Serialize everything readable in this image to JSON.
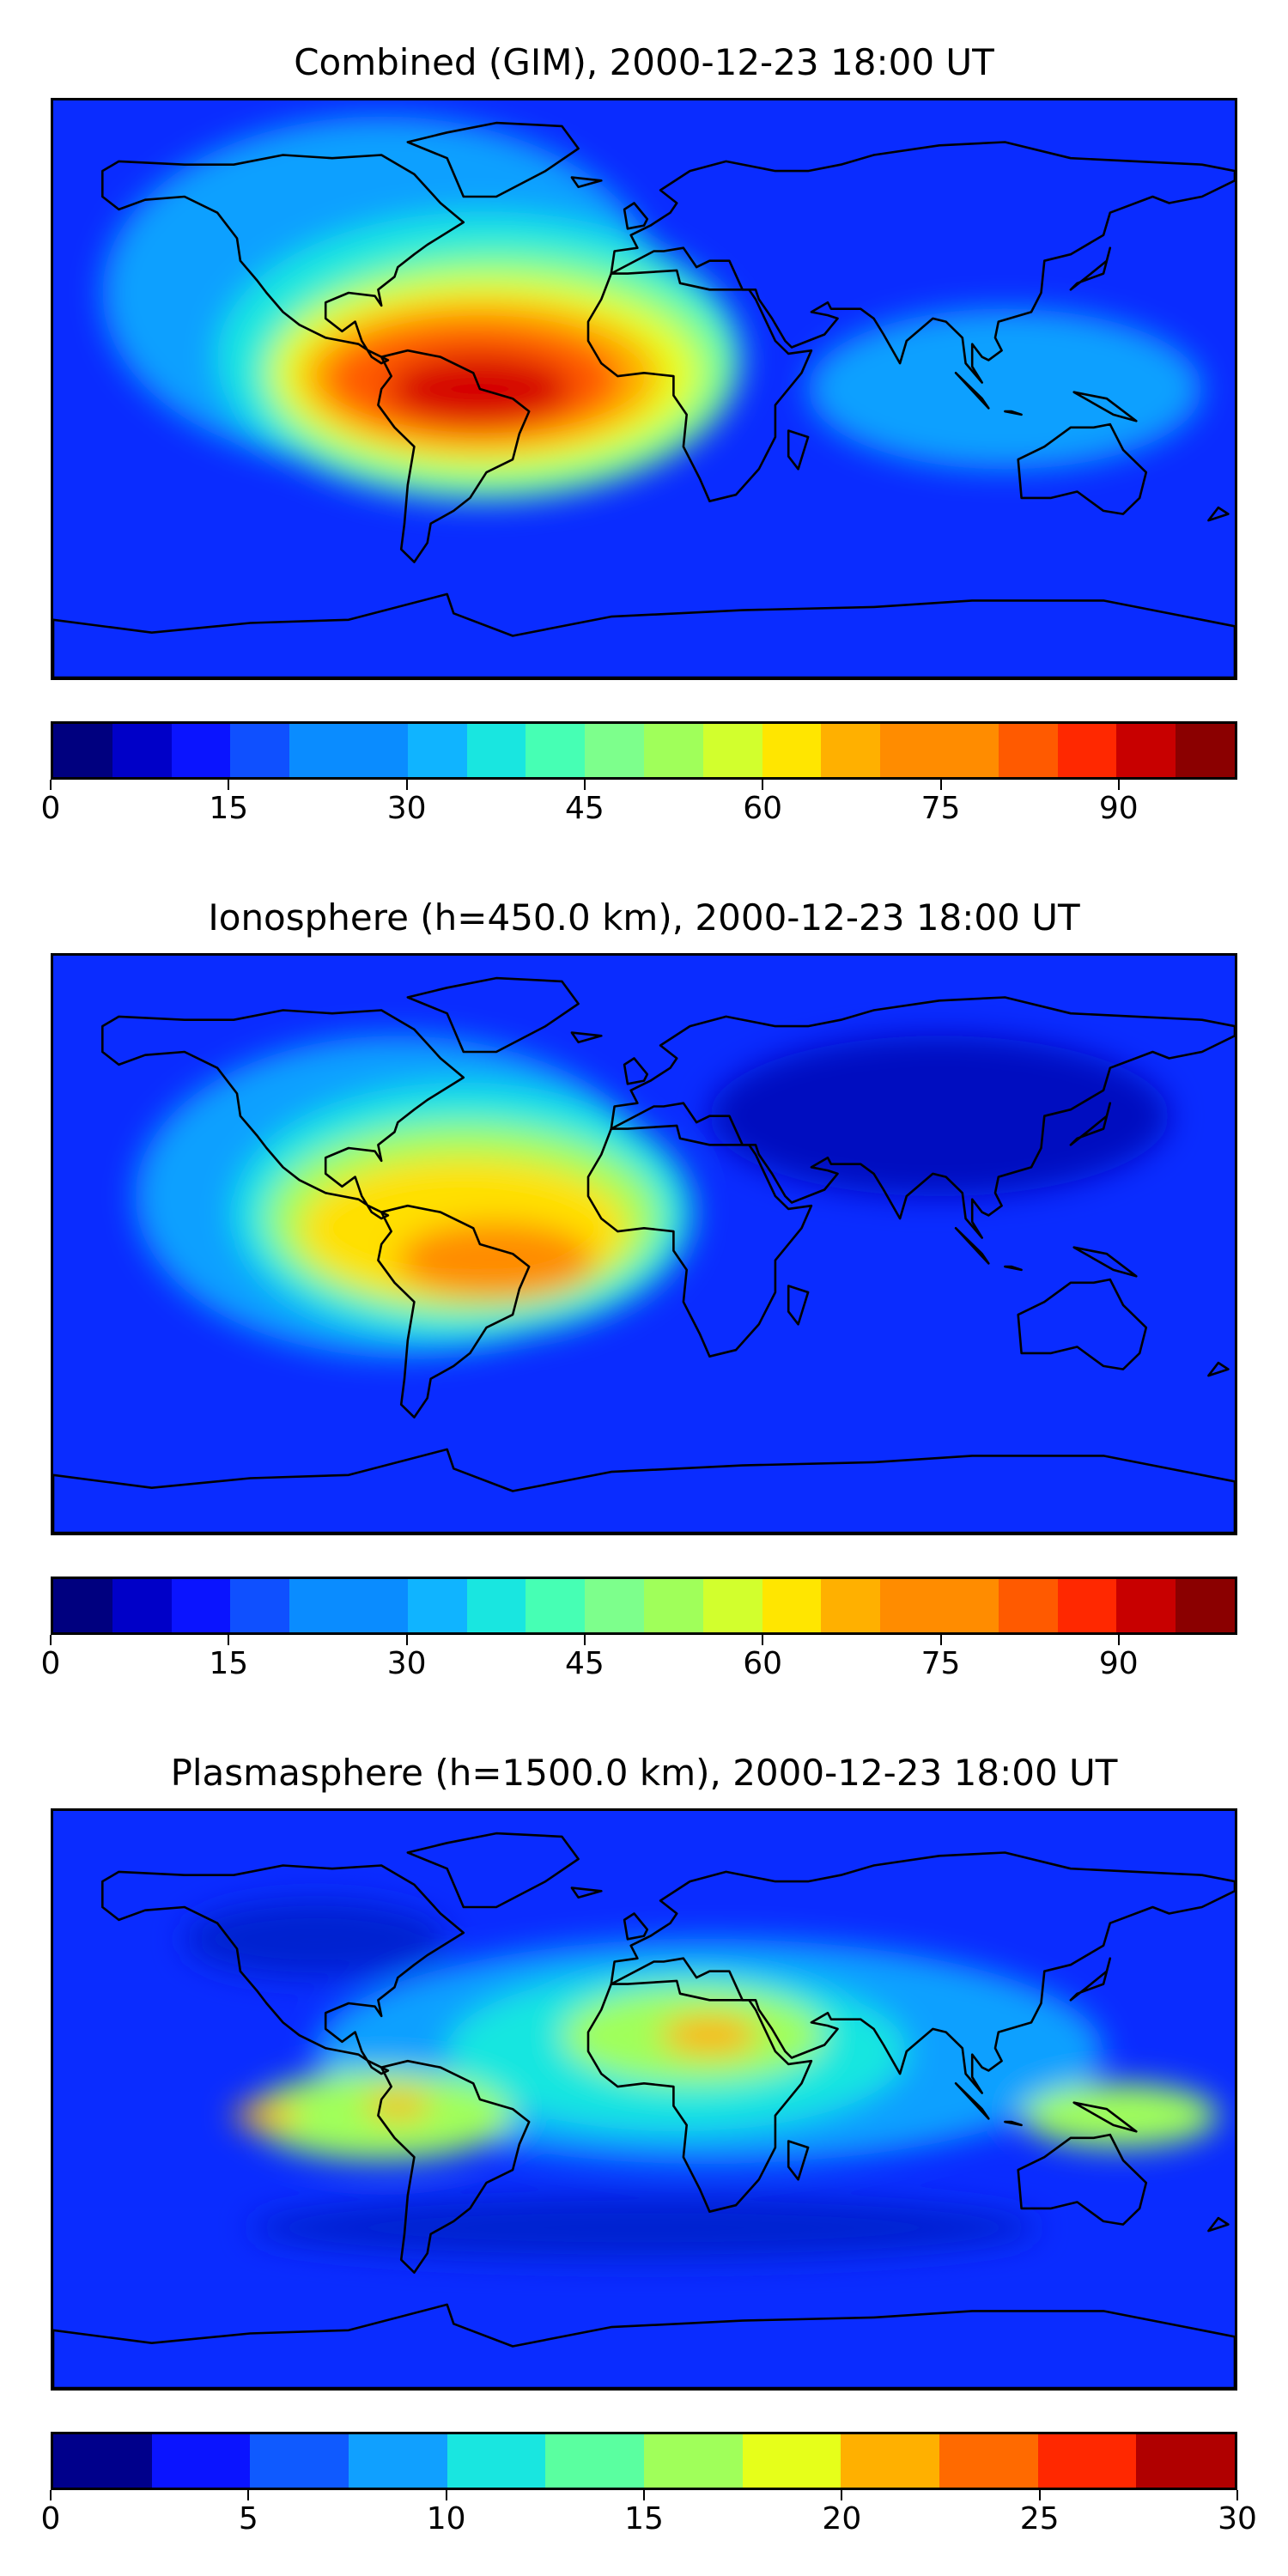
{
  "panels": [
    {
      "title": "Combined (GIM), 2000-12-23 18:00 UT",
      "colorbar": {
        "min": 0,
        "max": 100,
        "levels": 20,
        "ticks": [
          "0",
          "15",
          "30",
          "45",
          "60",
          "75",
          "90"
        ],
        "tick_values": [
          0,
          15,
          30,
          45,
          60,
          75,
          90
        ]
      },
      "background_color": "#0a2cff",
      "blobs": [
        {
          "lon": -80,
          "lat": 30,
          "rx": 85,
          "ry": 55,
          "color": "#10a0ff"
        },
        {
          "lon": -50,
          "lat": 10,
          "rx": 80,
          "ry": 45,
          "color": "#19e6e0"
        },
        {
          "lon": -45,
          "lat": 5,
          "rx": 72,
          "ry": 38,
          "color": "#7dff8c"
        },
        {
          "lon": -48,
          "lat": 5,
          "rx": 65,
          "ry": 30,
          "color": "#e6ff1a"
        },
        {
          "lon": -50,
          "lat": 4,
          "rx": 55,
          "ry": 24,
          "color": "#ffb000"
        },
        {
          "lon": -52,
          "lat": 3,
          "rx": 45,
          "ry": 18,
          "color": "#ff5a00"
        },
        {
          "lon": -50,
          "lat": 0,
          "rx": 28,
          "ry": 11,
          "color": "#d50000"
        },
        {
          "lon": 110,
          "lat": 0,
          "rx": 60,
          "ry": 25,
          "color": "#10a0ff"
        }
      ]
    },
    {
      "title": "Ionosphere  (h=450.0 km), 2000-12-23 18:00 UT",
      "colorbar": {
        "min": 0,
        "max": 100,
        "levels": 20,
        "ticks": [
          "0",
          "15",
          "30",
          "45",
          "60",
          "75",
          "90"
        ],
        "tick_values": [
          0,
          15,
          30,
          45,
          60,
          75,
          90
        ]
      },
      "background_color": "#0a2cff",
      "blobs": [
        {
          "lon": 90,
          "lat": 40,
          "rx": 70,
          "ry": 25,
          "color": "#0010c0"
        },
        {
          "lon": -75,
          "lat": 15,
          "rx": 80,
          "ry": 50,
          "color": "#10a0ff"
        },
        {
          "lon": -55,
          "lat": 10,
          "rx": 70,
          "ry": 40,
          "color": "#19e6e0"
        },
        {
          "lon": -55,
          "lat": 8,
          "rx": 60,
          "ry": 30,
          "color": "#a0ff5a"
        },
        {
          "lon": -55,
          "lat": 5,
          "rx": 50,
          "ry": 22,
          "color": "#ffe000"
        },
        {
          "lon": -45,
          "lat": -5,
          "rx": 30,
          "ry": 12,
          "color": "#ff8c00"
        }
      ]
    },
    {
      "title": "Plasmasphere (h=1500.0 km), 2000-12-23 18:00 UT",
      "colorbar": {
        "min": 0,
        "max": 30,
        "levels": 12,
        "ticks": [
          "0",
          "5",
          "10",
          "15",
          "20",
          "25",
          "30"
        ],
        "tick_values": [
          0,
          5,
          10,
          15,
          20,
          25,
          30
        ]
      },
      "background_color": "#0a2cff",
      "blobs": [
        {
          "lon": 20,
          "lat": 15,
          "rx": 120,
          "ry": 35,
          "color": "#10a0ff"
        },
        {
          "lon": 10,
          "lat": 15,
          "rx": 70,
          "ry": 25,
          "color": "#19e6e0"
        },
        {
          "lon": 15,
          "lat": 20,
          "rx": 40,
          "ry": 15,
          "color": "#a0ff5a"
        },
        {
          "lon": 20,
          "lat": 20,
          "rx": 15,
          "ry": 6,
          "color": "#ffb000"
        },
        {
          "lon": -80,
          "lat": -5,
          "rx": 40,
          "ry": 14,
          "color": "#a0ff5a"
        },
        {
          "lon": -115,
          "lat": -5,
          "rx": 10,
          "ry": 4,
          "color": "#ffb000"
        },
        {
          "lon": -75,
          "lat": -2,
          "rx": 10,
          "ry": 4,
          "color": "#ffb000"
        },
        {
          "lon": 145,
          "lat": -5,
          "rx": 30,
          "ry": 10,
          "color": "#a0ff5a"
        },
        {
          "lon": 0,
          "lat": -40,
          "rx": 120,
          "ry": 10,
          "color": "#0020d0"
        },
        {
          "lon": -100,
          "lat": 50,
          "rx": 40,
          "ry": 12,
          "color": "#0020d0"
        }
      ]
    }
  ],
  "jet_colors": [
    "#00007f",
    "#0000c8",
    "#0a14ff",
    "#0f50ff",
    "#0a8cff",
    "#10b4ff",
    "#19e6e0",
    "#46ffb4",
    "#7dff8c",
    "#a0ff5a",
    "#d2ff2d",
    "#ffe600",
    "#ffb000",
    "#ff8c00",
    "#ff5a00",
    "#ff2800",
    "#c80000",
    "#8b0000"
  ],
  "plasma_colors": [
    "#00008b",
    "#0a14ff",
    "#0f5aff",
    "#10a0ff",
    "#19e6e0",
    "#5affa0",
    "#a0ff5a",
    "#e6ff1a",
    "#ffb000",
    "#ff6a00",
    "#ff2800",
    "#b00000"
  ]
}
